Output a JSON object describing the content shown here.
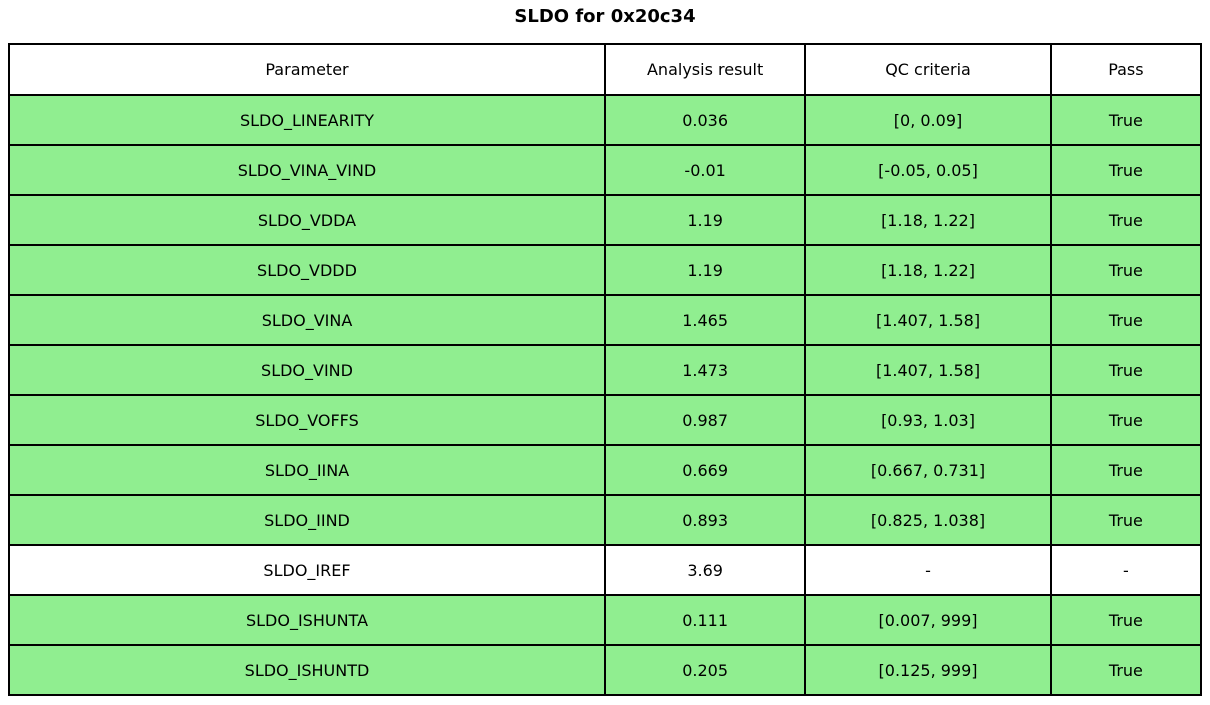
{
  "title": "SLDO for 0x20c34",
  "colors": {
    "pass_row_background": "#90ee90",
    "neutral_row_background": "#ffffff",
    "border": "#000000",
    "text": "#000000"
  },
  "chart_data": {
    "type": "table",
    "title": "SLDO for 0x20c34",
    "columns": [
      "Parameter",
      "Analysis result",
      "QC criteria",
      "Pass"
    ],
    "rows": [
      {
        "parameter": "SLDO_LINEARITY",
        "analysis_result": "0.036",
        "qc_criteria": "[0, 0.09]",
        "pass": "True"
      },
      {
        "parameter": "SLDO_VINA_VIND",
        "analysis_result": "-0.01",
        "qc_criteria": "[-0.05, 0.05]",
        "pass": "True"
      },
      {
        "parameter": "SLDO_VDDA",
        "analysis_result": "1.19",
        "qc_criteria": "[1.18, 1.22]",
        "pass": "True"
      },
      {
        "parameter": "SLDO_VDDD",
        "analysis_result": "1.19",
        "qc_criteria": "[1.18, 1.22]",
        "pass": "True"
      },
      {
        "parameter": "SLDO_VINA",
        "analysis_result": "1.465",
        "qc_criteria": "[1.407, 1.58]",
        "pass": "True"
      },
      {
        "parameter": "SLDO_VIND",
        "analysis_result": "1.473",
        "qc_criteria": "[1.407, 1.58]",
        "pass": "True"
      },
      {
        "parameter": "SLDO_VOFFS",
        "analysis_result": "0.987",
        "qc_criteria": "[0.93, 1.03]",
        "pass": "True"
      },
      {
        "parameter": "SLDO_IINA",
        "analysis_result": "0.669",
        "qc_criteria": "[0.667, 0.731]",
        "pass": "True"
      },
      {
        "parameter": "SLDO_IIND",
        "analysis_result": "0.893",
        "qc_criteria": "[0.825, 1.038]",
        "pass": "True"
      },
      {
        "parameter": "SLDO_IREF",
        "analysis_result": "3.69",
        "qc_criteria": "-",
        "pass": "-"
      },
      {
        "parameter": "SLDO_ISHUNTA",
        "analysis_result": "0.111",
        "qc_criteria": "[0.007, 999]",
        "pass": "True"
      },
      {
        "parameter": "SLDO_ISHUNTD",
        "analysis_result": "0.205",
        "qc_criteria": "[0.125, 999]",
        "pass": "True"
      }
    ]
  }
}
